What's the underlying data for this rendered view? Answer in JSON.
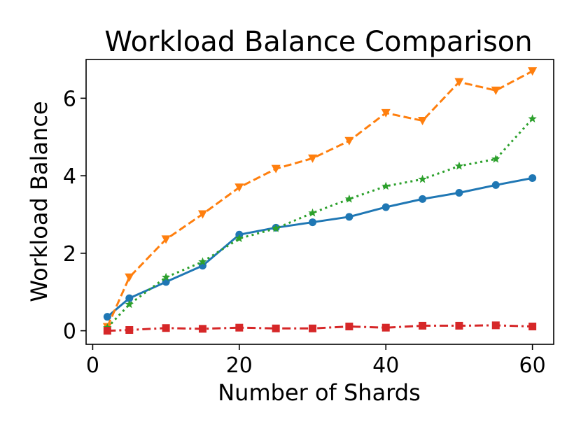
{
  "chart_data": {
    "type": "line",
    "title": "Workload Balance Comparison",
    "xlabel": "Number of Shards",
    "ylabel": "Workload Balance",
    "xlim": [
      -0.9,
      62.9
    ],
    "ylim": [
      -0.35,
      7.0
    ],
    "xticks": [
      0,
      20,
      40,
      60
    ],
    "yticks": [
      0,
      2,
      4,
      6
    ],
    "grid": false,
    "legend": "none",
    "x": [
      2,
      5,
      10,
      15,
      20,
      25,
      30,
      35,
      40,
      45,
      50,
      55,
      60
    ],
    "series": [
      {
        "color": "#1f77b4",
        "linestyle": "solid",
        "marker": "circle",
        "values": [
          0.36,
          0.84,
          1.26,
          1.68,
          2.48,
          2.66,
          2.8,
          2.94,
          3.19,
          3.4,
          3.56,
          3.76,
          3.94
        ]
      },
      {
        "color": "#ff7f0e",
        "linestyle": "dashed",
        "marker": "triangle-down",
        "values": [
          0.1,
          1.38,
          2.36,
          3.01,
          3.7,
          4.18,
          4.45,
          4.9,
          5.62,
          5.42,
          6.42,
          6.2,
          6.7
        ]
      },
      {
        "color": "#2ca02c",
        "linestyle": "dotted",
        "marker": "star",
        "values": [
          0.08,
          0.68,
          1.38,
          1.78,
          2.38,
          2.64,
          3.04,
          3.4,
          3.73,
          3.91,
          4.25,
          4.43,
          5.47
        ]
      },
      {
        "color": "#d62728",
        "linestyle": "dashdot",
        "marker": "square",
        "values": [
          0.0,
          0.02,
          0.07,
          0.05,
          0.08,
          0.06,
          0.06,
          0.11,
          0.08,
          0.13,
          0.13,
          0.14,
          0.11
        ]
      }
    ]
  }
}
